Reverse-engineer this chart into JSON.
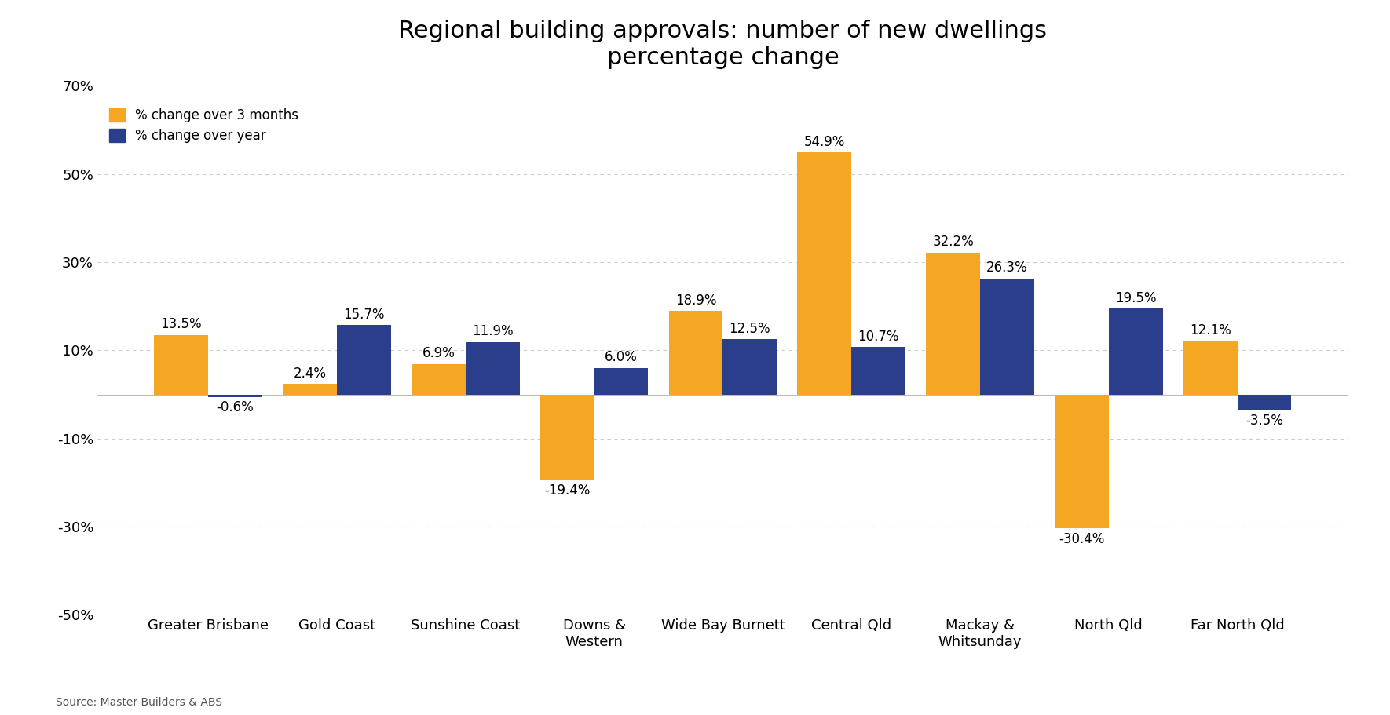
{
  "title": "Regional building approvals: number of new dwellings\npercentage change",
  "categories": [
    "Greater Brisbane",
    "Gold Coast",
    "Sunshine Coast",
    "Downs &\nWestern",
    "Wide Bay Burnett",
    "Central Qld",
    "Mackay &\nWhitsunday",
    "North Qld",
    "Far North Qld"
  ],
  "three_month": [
    13.5,
    2.4,
    6.9,
    -19.4,
    18.9,
    54.9,
    32.2,
    -30.4,
    12.1
  ],
  "year": [
    -0.6,
    15.7,
    11.9,
    6.0,
    12.5,
    10.7,
    26.3,
    19.5,
    -3.5
  ],
  "color_3month": "#F5A623",
  "color_year": "#2B3E8B",
  "ylim": [
    -50,
    70
  ],
  "yticks": [
    -50,
    -30,
    -10,
    10,
    30,
    50,
    70
  ],
  "ytick_labels": [
    "-50%",
    "-30%",
    "-10%",
    "10%",
    "30%",
    "50%",
    "70%"
  ],
  "legend_3month": "% change over 3 months",
  "legend_year": "% change over year",
  "source": "Source: Master Builders & ABS",
  "background_color": "#FFFFFF",
  "grid_color": "#CCCCCC",
  "title_fontsize": 22,
  "label_fontsize": 12,
  "tick_fontsize": 13,
  "bar_width": 0.42
}
